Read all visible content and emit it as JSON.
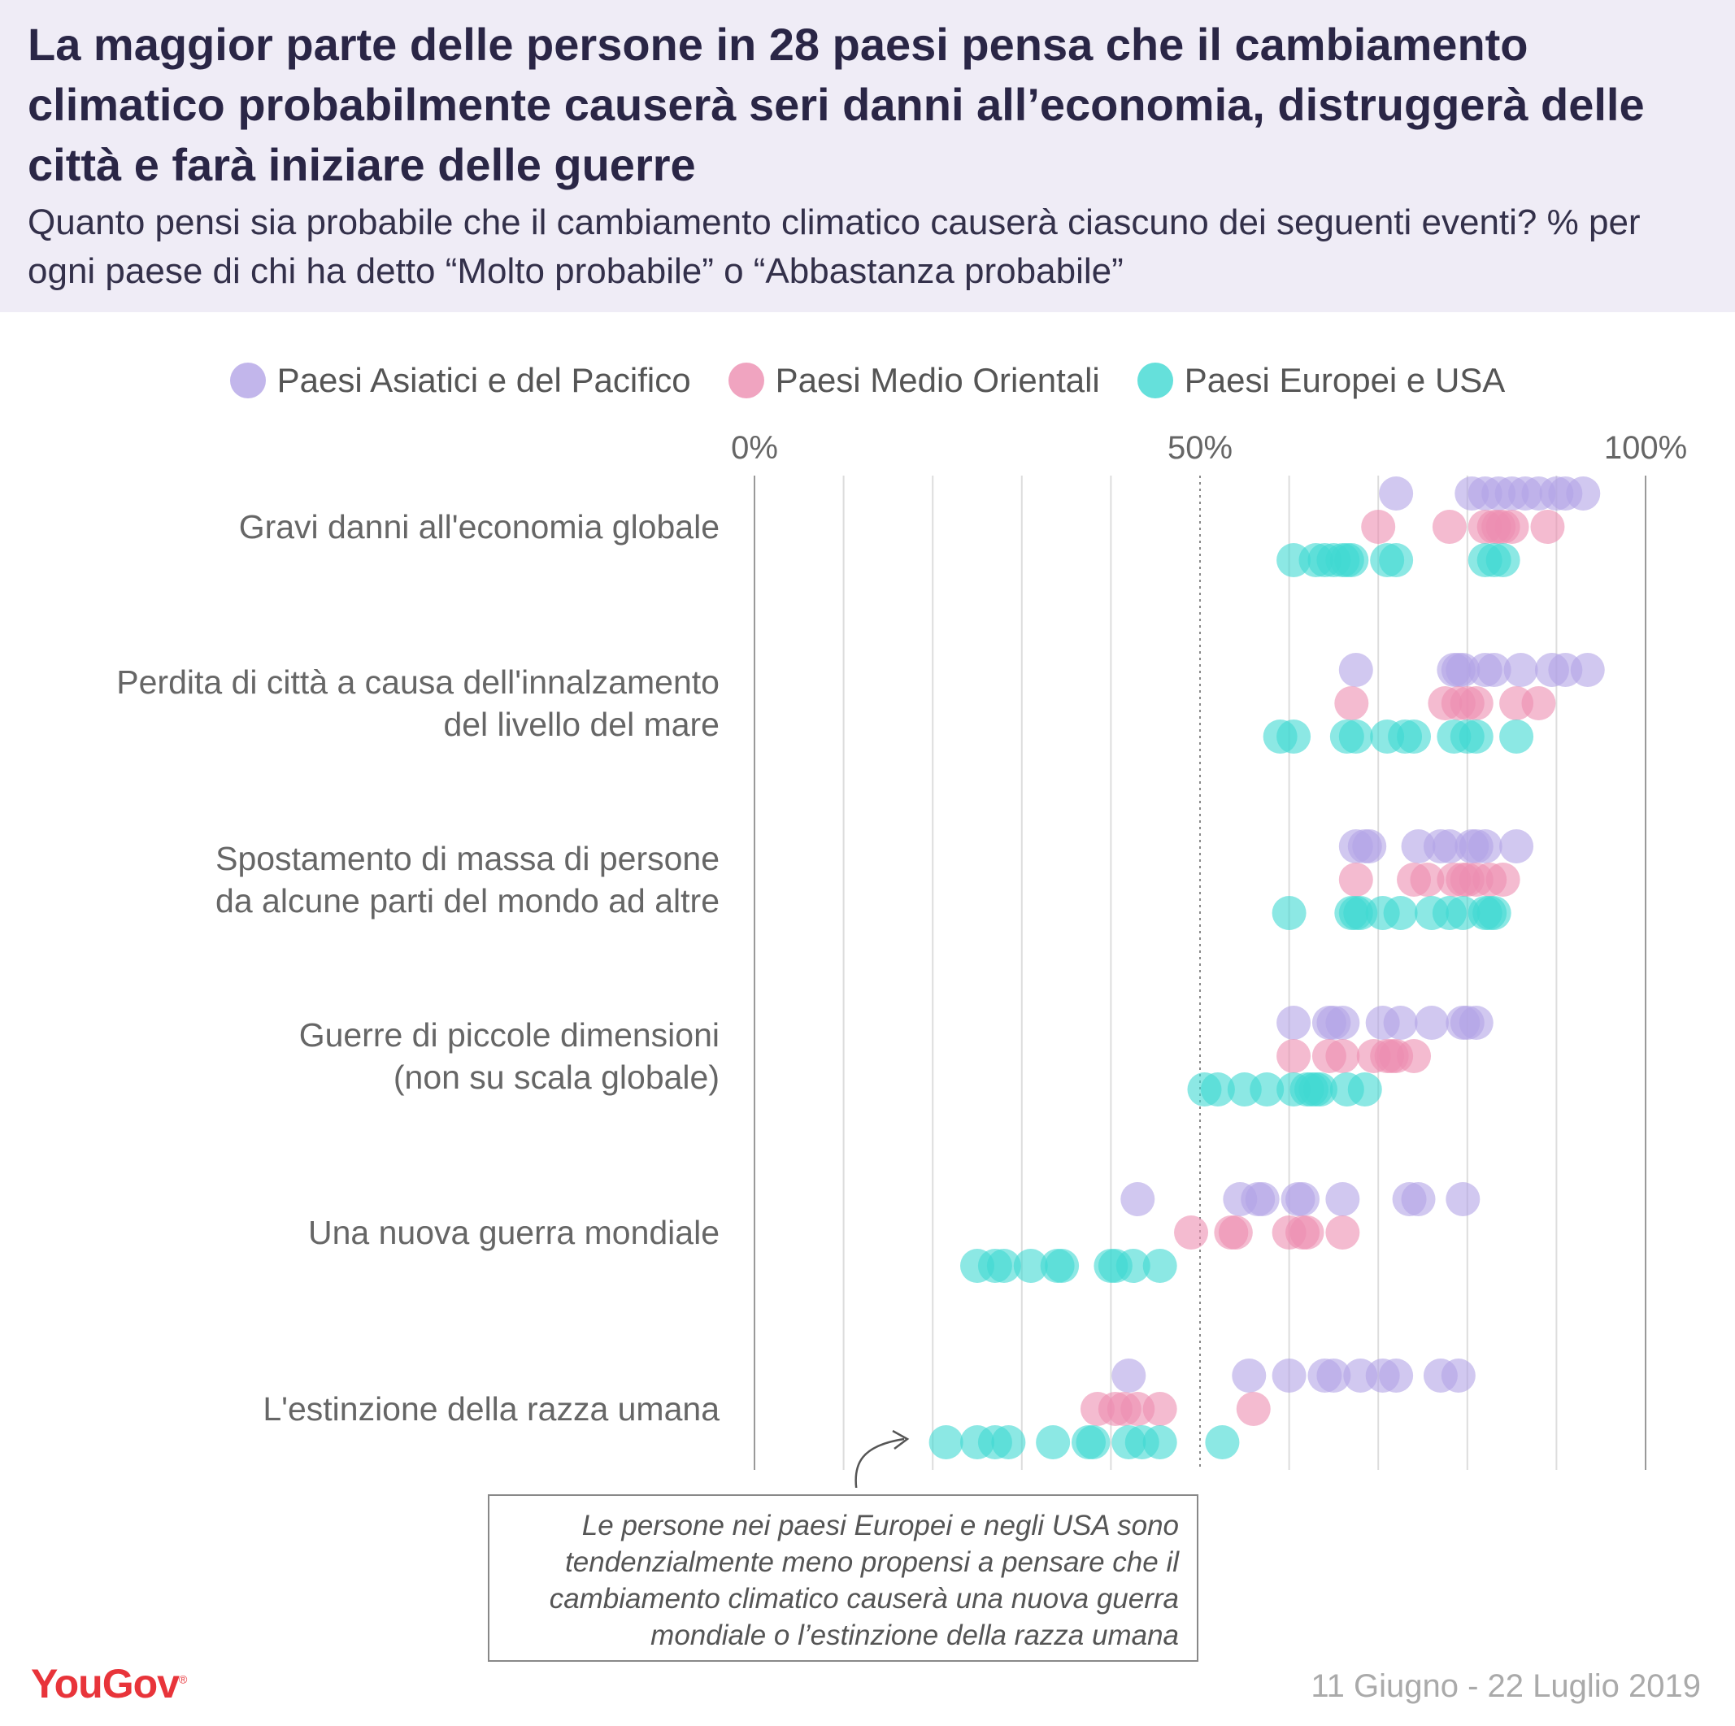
{
  "header": {
    "title": "La maggior parte delle persone in 28 paesi pensa che il cambiamento climatico probabilmente causerà seri danni all’economia, distruggerà delle città e farà iniziare delle guerre",
    "subtitle": "Quanto pensi sia probabile che il cambiamento climatico causerà ciascuno dei seguenti eventi? % per ogni paese di chi ha detto “Molto probabile” o “Abbastanza probabile”"
  },
  "annotation": "Le persone nei paesi Europei e negli USA sono tendenzialmente meno propensi a pensare che il cambiamento climatico causerà una nuova guerra mondiale o l’estinzione della razza umana",
  "footer": {
    "brand": "YouGov",
    "date_range": "11 Giugno - 22 Luglio 2019"
  },
  "chart_data": {
    "type": "scatter",
    "xlim": [
      0,
      100
    ],
    "x_ticks": [
      {
        "value": 0,
        "label": "0%"
      },
      {
        "value": 50,
        "label": "50%"
      },
      {
        "value": 100,
        "label": "100%"
      }
    ],
    "gridlines": [
      10,
      20,
      30,
      40,
      60,
      70,
      80,
      90
    ],
    "legend_position": "top",
    "series": [
      {
        "name": "Paesi Asiatici e del Pacifico",
        "color": "#b3a4e6"
      },
      {
        "name": "Paesi Medio Orientali",
        "color": "#ec8db0"
      },
      {
        "name": "Paesi Europei e USA",
        "color": "#3fd8d2"
      }
    ],
    "categories": [
      {
        "label": [
          "Gravi danni all'economia globale"
        ],
        "values": [
          [
            72,
            80.5,
            82,
            83.5,
            85,
            86.5,
            88,
            90,
            91,
            93
          ],
          [
            70,
            78,
            82,
            83,
            83.5,
            84,
            85,
            89
          ],
          [
            60.5,
            63,
            64,
            65,
            66,
            66.5,
            67,
            71,
            72,
            82,
            83,
            84
          ]
        ]
      },
      {
        "label": [
          "Perdita di città a causa dell'innalzamento",
          "del livello del mare"
        ],
        "values": [
          [
            67.5,
            78.5,
            79,
            79.5,
            82,
            83,
            86,
            89.5,
            91,
            93.5
          ],
          [
            67,
            77.5,
            79,
            80,
            81,
            85.5,
            88
          ],
          [
            59,
            60.5,
            66.5,
            67.5,
            71,
            73,
            74,
            78.5,
            80,
            81,
            85.5
          ]
        ]
      },
      {
        "label": [
          "Spostamento di massa di persone",
          "da alcune parti del mondo ad altre"
        ],
        "values": [
          [
            67.5,
            68.5,
            69,
            74.5,
            77,
            78,
            80.5,
            81,
            82,
            85.5
          ],
          [
            67.5,
            74,
            75.5,
            78.5,
            79.5,
            80,
            81,
            82.5,
            84
          ],
          [
            60,
            67,
            67.5,
            68,
            70.5,
            72.5,
            76,
            78,
            79.5,
            82,
            82.5,
            83
          ]
        ]
      },
      {
        "label": [
          "Guerre di piccole dimensioni",
          "(non su scala globale)"
        ],
        "values": [
          [
            60.5,
            64.5,
            65,
            66,
            70.5,
            72.5,
            76,
            79.5,
            80,
            81
          ],
          [
            60.5,
            64.5,
            66,
            69.5,
            71,
            71.5,
            72,
            74
          ],
          [
            50.5,
            52,
            55,
            57.5,
            60.5,
            62,
            62.5,
            63,
            63.5,
            66.5,
            68.5
          ]
        ]
      },
      {
        "label": [
          "Una nuova guerra mondiale"
        ],
        "values": [
          [
            43,
            54.5,
            56.5,
            57,
            61,
            61.5,
            66,
            73.5,
            74.5,
            79.5
          ],
          [
            49,
            53.5,
            54,
            60,
            61.5,
            62,
            66
          ],
          [
            25,
            27,
            28,
            31,
            34,
            34.5,
            40,
            40.5,
            42.5,
            45.5
          ]
        ]
      },
      {
        "label": [
          "L'estinzione della razza umana"
        ],
        "values": [
          [
            42,
            55.5,
            60,
            64,
            65,
            68,
            70.5,
            72,
            77,
            79
          ],
          [
            38.5,
            40.5,
            41.5,
            43,
            45.5,
            56
          ],
          [
            21.5,
            25,
            27,
            28.5,
            33.5,
            37.5,
            38,
            42,
            43.5,
            45.5,
            52.5
          ]
        ]
      }
    ]
  }
}
